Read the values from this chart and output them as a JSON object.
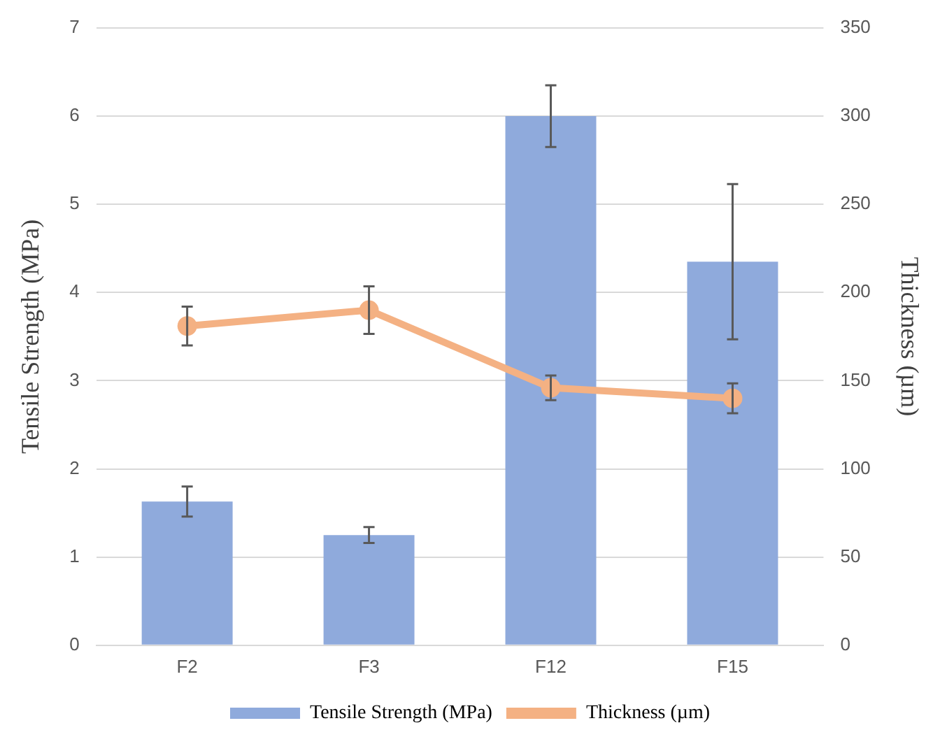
{
  "chart_data": {
    "type": "bar",
    "categories": [
      "F2",
      "F3",
      "F12",
      "F15"
    ],
    "ylabel": "Tensile Strength (MPa)",
    "y2label": "Thickness (µm)",
    "series": [
      {
        "name": "Tensile Strength (MPa)",
        "color": "#8faadc",
        "values": [
          1.63,
          1.25,
          6.0,
          4.35
        ],
        "errors": [
          0.17,
          0.09,
          0.35,
          0.88
        ]
      },
      {
        "name": "Thickness (µm)",
        "type": "line",
        "axis": "y2",
        "color": "#f4b183",
        "values": [
          181,
          190,
          146,
          140
        ],
        "errors": [
          11,
          13.5,
          7,
          8.5
        ]
      }
    ],
    "ylim": [
      0,
      7
    ],
    "yticks": [
      0,
      1,
      2,
      3,
      4,
      5,
      6,
      7
    ],
    "y2lim": [
      0,
      350
    ],
    "y2ticks": [
      0,
      50,
      100,
      150,
      200,
      250,
      300,
      350
    ],
    "grid": "y",
    "legend": "bottom",
    "marker": "circle",
    "line_style": "solid"
  }
}
